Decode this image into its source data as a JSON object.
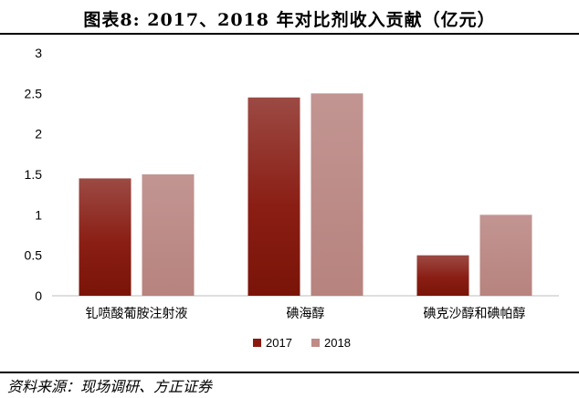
{
  "header": {
    "title": "图表8:  2017、2018 年对比剂收入贡献（亿元）"
  },
  "chart_data": {
    "type": "bar",
    "categories": [
      "钆喷酸葡胺注射液",
      "碘海醇",
      "碘克沙醇和碘帕醇"
    ],
    "series": [
      {
        "name": "2017",
        "values": [
          1.45,
          2.45,
          0.5
        ],
        "color": "#8b1a10"
      },
      {
        "name": "2018",
        "values": [
          1.5,
          2.5,
          1.0
        ],
        "color": "#c08a86"
      }
    ],
    "xlabel": "",
    "ylabel": "",
    "ylim": [
      0,
      3
    ],
    "yticks": [
      "0",
      "0.5",
      "1",
      "1.5",
      "2",
      "2.5",
      "3"
    ],
    "grid": false,
    "legend_position": "bottom-center"
  },
  "footer": {
    "source": "资料来源：现场调研、方正证券"
  }
}
